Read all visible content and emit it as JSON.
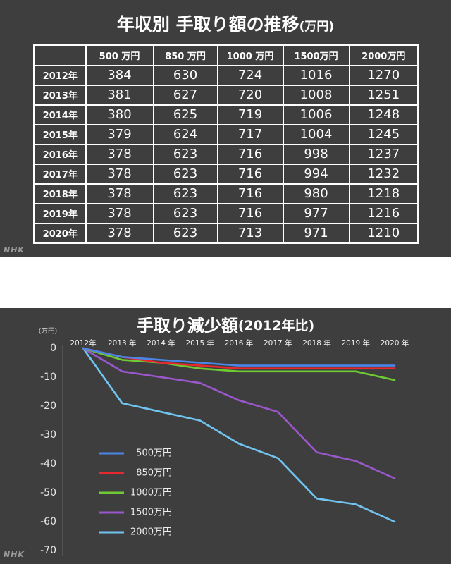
{
  "watermark": "NHK",
  "colors": {
    "panel_background": "#3e3e3e",
    "table_lines": "#ffffff",
    "text": "#ffffff"
  },
  "chart_data": [
    {
      "type": "table",
      "title": "年収別 手取り額の推移",
      "title_note": "(万円)",
      "columns": [
        "500 万円",
        "850 万円",
        "1000 万円",
        "1500万円",
        "2000万円"
      ],
      "rows": [
        {
          "label": "2012年",
          "values": [
            384,
            630,
            724,
            1016,
            1270
          ]
        },
        {
          "label": "2013年",
          "values": [
            381,
            627,
            720,
            1008,
            1251
          ]
        },
        {
          "label": "2014年",
          "values": [
            380,
            625,
            719,
            1006,
            1248
          ]
        },
        {
          "label": "2015年",
          "values": [
            379,
            624,
            717,
            1004,
            1245
          ]
        },
        {
          "label": "2016年",
          "values": [
            378,
            623,
            716,
            998,
            1237
          ]
        },
        {
          "label": "2017年",
          "values": [
            378,
            623,
            716,
            994,
            1232
          ]
        },
        {
          "label": "2018年",
          "values": [
            378,
            623,
            716,
            980,
            1218
          ]
        },
        {
          "label": "2019年",
          "values": [
            378,
            623,
            716,
            977,
            1216
          ]
        },
        {
          "label": "2020年",
          "values": [
            378,
            623,
            713,
            971,
            1210
          ]
        }
      ]
    },
    {
      "type": "line",
      "title": "手取り減少額",
      "title_note": "(2012年比)",
      "ylabel": "(万円)",
      "categories": [
        "2012年",
        "2013 年",
        "2014 年",
        "2015 年",
        "2016 年",
        "2017 年",
        "2018 年",
        "2019 年",
        "2020 年"
      ],
      "xaxis_position": "top",
      "ylim": [
        -70,
        0
      ],
      "yticks": [
        0,
        -10,
        -20,
        -30,
        -40,
        -50,
        -60,
        -70
      ],
      "grid": false,
      "legend": "lower-left",
      "series": [
        {
          "name": "500万円",
          "color": "#4a86e8",
          "values": [
            0,
            -3,
            -4,
            -5,
            -6,
            -6,
            -6,
            -6,
            -6
          ]
        },
        {
          "name": "850万円",
          "color": "#e8282e",
          "values": [
            0,
            -3,
            -5,
            -6,
            -7,
            -7,
            -7,
            -7,
            -7
          ]
        },
        {
          "name": "1000万円",
          "color": "#6ecb34",
          "values": [
            0,
            -4,
            -5,
            -7,
            -8,
            -8,
            -8,
            -8,
            -11
          ]
        },
        {
          "name": "1500万円",
          "color": "#9a58cc",
          "values": [
            0,
            -8,
            -10,
            -12,
            -18,
            -22,
            -36,
            -39,
            -45
          ]
        },
        {
          "name": "2000万円",
          "color": "#72c4f0",
          "values": [
            0,
            -19,
            -22,
            -25,
            -33,
            -38,
            -52,
            -54,
            -60
          ]
        }
      ]
    }
  ]
}
